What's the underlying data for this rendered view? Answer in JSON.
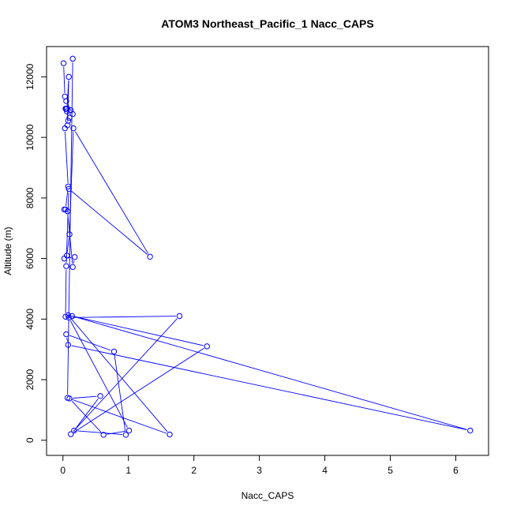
{
  "chart_data": {
    "type": "line",
    "title": "ATOM3 Northeast_Pacific_1 Nacc_CAPS",
    "xlabel": "Nacc_CAPS",
    "ylabel": "Altitude (m)",
    "xlim": [
      -0.25,
      6.5
    ],
    "ylim": [
      -500,
      13000
    ],
    "xticks": [
      0,
      1,
      2,
      3,
      4,
      5,
      6
    ],
    "yticks": [
      0,
      2000,
      4000,
      6000,
      8000,
      10000,
      12000
    ],
    "grid": false,
    "series_color": "#0000ff",
    "series": [
      {
        "markers": "open-circle",
        "x": [
          0.01,
          0.03,
          0.05,
          0.15,
          0.1,
          0.08,
          0.06,
          0.12,
          0.05,
          0.04,
          0.06,
          0.09,
          0.07,
          0.03,
          0.08,
          0.04,
          0.02,
          0.07,
          0.15,
          0.18,
          0.02,
          0.06,
          0.1,
          0.16,
          1.33,
          0.09,
          0.05,
          0.04,
          0.14,
          6.22,
          0.08,
          0.05,
          0.78,
          0.96,
          0.17,
          0.57,
          0.1,
          0.62,
          1.01,
          0.09,
          1.78,
          0.12,
          2.2,
          0.08,
          1.63,
          0.07,
          0.15
        ],
        "y": [
          12450,
          11350,
          11200,
          10770,
          10650,
          10550,
          10950,
          10900,
          10940,
          10950,
          10860,
          12000,
          10400,
          10300,
          8380,
          7620,
          7620,
          7560,
          5720,
          6050,
          6000,
          6100,
          6800,
          10300,
          6060,
          8300,
          5750,
          4080,
          4100,
          320,
          3150,
          3500,
          2930,
          180,
          320,
          1460,
          1380,
          180,
          320,
          4050,
          4100,
          200,
          3100,
          4130,
          190,
          1400,
          12600
        ]
      }
    ]
  }
}
